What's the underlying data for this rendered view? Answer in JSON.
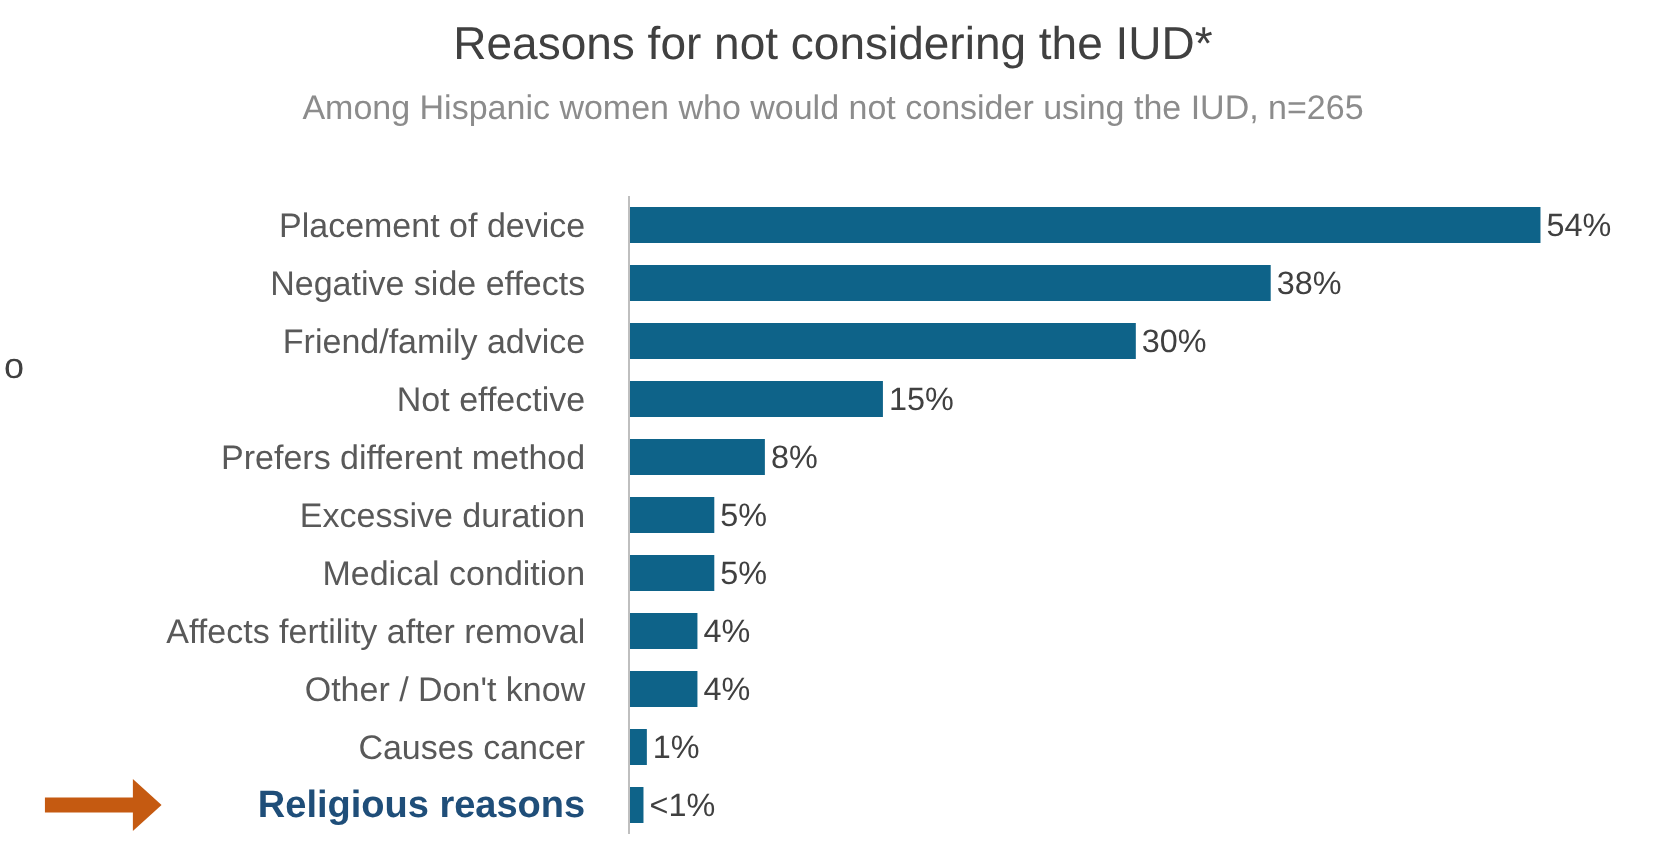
{
  "chart_data": {
    "type": "bar",
    "orientation": "horizontal",
    "title": "Reasons for not considering the IUD*",
    "subtitle": "Among Hispanic women who would not consider using the IUD, n=265",
    "categories": [
      "Placement of device",
      "Negative side effects",
      "Friend/family advice",
      "Not effective",
      "Prefers different method",
      "Excessive duration",
      "Medical condition",
      "Affects fertility after removal",
      "Other / Don't know",
      "Causes cancer",
      "Religious reasons"
    ],
    "values": [
      54,
      38,
      30,
      15,
      8,
      5,
      5,
      4,
      4,
      1,
      0.8
    ],
    "value_labels": [
      "54%",
      "38%",
      "30%",
      "15%",
      "8%",
      "5%",
      "5%",
      "4%",
      "4%",
      "1%",
      "<1%"
    ],
    "color": "#0e6389",
    "legend": false,
    "annotations": [
      "o"
    ]
  }
}
